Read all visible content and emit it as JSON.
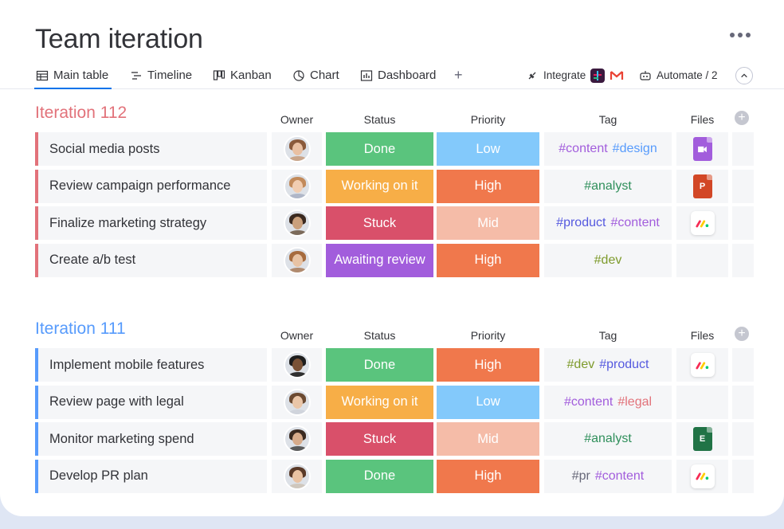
{
  "board": {
    "title": "Team iteration"
  },
  "views": [
    {
      "label": "Main table",
      "icon": "table-icon",
      "active": true
    },
    {
      "label": "Timeline",
      "icon": "timeline-icon"
    },
    {
      "label": "Kanban",
      "icon": "kanban-icon"
    },
    {
      "label": "Chart",
      "icon": "chart-icon"
    },
    {
      "label": "Dashboard",
      "icon": "dashboard-icon"
    }
  ],
  "toolbar": {
    "add": "+",
    "integrate": "Integrate",
    "automate": "Automate / 2"
  },
  "columns": {
    "owner": "Owner",
    "status": "Status",
    "priority": "Priority",
    "tag": "Tag",
    "files": "Files",
    "add": "+"
  },
  "colors": {
    "done": "#5ac47d",
    "working": "#f7ae47",
    "stuck": "#d9506a",
    "awaiting": "#a25ddc",
    "low": "#83c9fb",
    "high": "#f0784c",
    "mid": "#f5bca8",
    "group112": "#e2727a",
    "group111": "#579bfc"
  },
  "groups": [
    {
      "title": "Iteration 112",
      "rows": [
        {
          "name": "Social media posts",
          "status": "Done",
          "priority": "Low",
          "tags": [
            {
              "t": "#content",
              "c": "#a25ddc"
            },
            {
              "t": "#design",
              "c": "#579bfc"
            }
          ],
          "file": "video"
        },
        {
          "name": "Review campaign performance",
          "status": "Working on it",
          "priority": "High",
          "tags": [
            {
              "t": "#analyst",
              "c": "#2f8f5b"
            }
          ],
          "file": "ppt"
        },
        {
          "name": "Finalize marketing strategy",
          "status": "Stuck",
          "priority": "Mid",
          "tags": [
            {
              "t": "#product",
              "c": "#5559df"
            },
            {
              "t": "#content",
              "c": "#a25ddc"
            }
          ],
          "file": "monday"
        },
        {
          "name": "Create a/b test",
          "status": "Awaiting review",
          "priority": "High",
          "tags": [
            {
              "t": "#dev",
              "c": "#7e9b2c"
            }
          ],
          "file": ""
        }
      ]
    },
    {
      "title": "Iteration 111",
      "rows": [
        {
          "name": "Implement mobile features",
          "status": "Done",
          "priority": "High",
          "tags": [
            {
              "t": "#dev",
              "c": "#7e9b2c"
            },
            {
              "t": "#product",
              "c": "#5559df"
            }
          ],
          "file": "monday"
        },
        {
          "name": "Review page with legal",
          "status": "Working on it",
          "priority": "Low",
          "tags": [
            {
              "t": "#content",
              "c": "#a25ddc"
            },
            {
              "t": "#legal",
              "c": "#e2727a"
            }
          ],
          "file": ""
        },
        {
          "name": "Monitor marketing spend",
          "status": "Stuck",
          "priority": "Mid",
          "tags": [
            {
              "t": "#analyst",
              "c": "#2f8f5b"
            }
          ],
          "file": "excel"
        },
        {
          "name": "Develop PR plan",
          "status": "Done",
          "priority": "High",
          "tags": [
            {
              "t": "#pr",
              "c": "#676879"
            },
            {
              "t": "#content",
              "c": "#a25ddc"
            }
          ],
          "file": "monday"
        }
      ]
    }
  ]
}
